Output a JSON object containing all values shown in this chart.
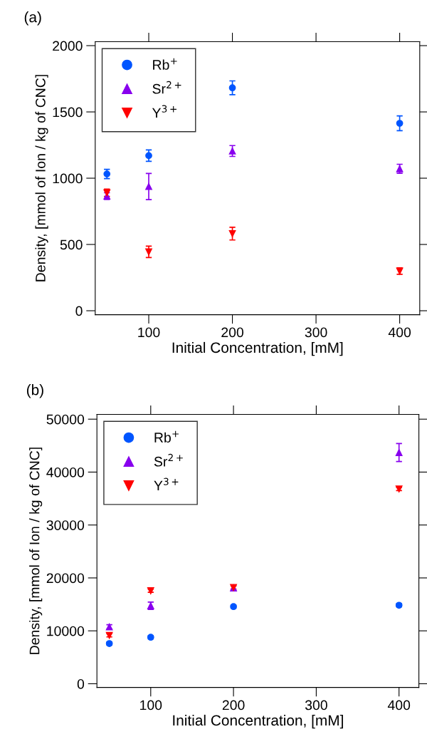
{
  "chart_data": [
    {
      "type": "scatter",
      "title": "(a)",
      "xlabel": "Initial Concentration, [mM]",
      "ylabel": "Density, [mmol of Ion / kg of CNC]",
      "x": [
        50,
        100,
        200,
        400
      ],
      "xlim": [
        36,
        424
      ],
      "xticks": [
        100,
        200,
        300,
        400
      ],
      "ylim": [
        -30,
        2030
      ],
      "yticks": [
        0,
        500,
        1000,
        1500,
        2000
      ],
      "legend": "top left",
      "grid": false,
      "series": [
        {
          "name": "Rb$^{+}$",
          "color": "#0055ff",
          "marker": "circle",
          "values": [
            1032,
            1170,
            1682,
            1414
          ],
          "errors": [
            35,
            43,
            52,
            56
          ]
        },
        {
          "name": "Sr$^{2+}$",
          "color": "#8800ee",
          "marker": "triangle",
          "values": [
            865,
            937,
            1205,
            1071
          ],
          "errors": [
            25,
            99,
            41,
            34
          ]
        },
        {
          "name": "Y$^{3+}$",
          "color": "#ff0000",
          "marker": "triangle_down",
          "values": [
            890,
            444,
            582,
            299
          ],
          "errors": [
            28,
            43,
            48,
            24
          ]
        }
      ]
    },
    {
      "type": "scatter",
      "title": "(b)",
      "xlabel": "Initial Concentration, [mM]",
      "ylabel": "Density, [mmol of Ion / kg of CNC]",
      "x": [
        50,
        100,
        200,
        400
      ],
      "xlim": [
        35,
        424
      ],
      "xticks": [
        100,
        200,
        300,
        400
      ],
      "ylim": [
        -700,
        50900
      ],
      "yticks": [
        0,
        10000,
        20000,
        30000,
        40000,
        50000
      ],
      "legend": "top left",
      "grid": false,
      "series": [
        {
          "name": "Rb$^{+}$",
          "color": "#0055ff",
          "marker": "circle",
          "values": [
            7600,
            8790,
            14580,
            14840
          ],
          "errors": [
            300,
            300,
            300,
            300
          ]
        },
        {
          "name": "Sr$^{2+}$",
          "color": "#8800ee",
          "marker": "triangle",
          "values": [
            10750,
            14730,
            18100,
            43690
          ],
          "errors": [
            400,
            700,
            400,
            1700
          ]
        },
        {
          "name": "Y$^{3+}$",
          "color": "#ff0000",
          "marker": "triangle_down",
          "values": [
            9150,
            17580,
            18200,
            36810
          ],
          "errors": [
            300,
            300,
            300,
            300
          ]
        }
      ]
    }
  ]
}
